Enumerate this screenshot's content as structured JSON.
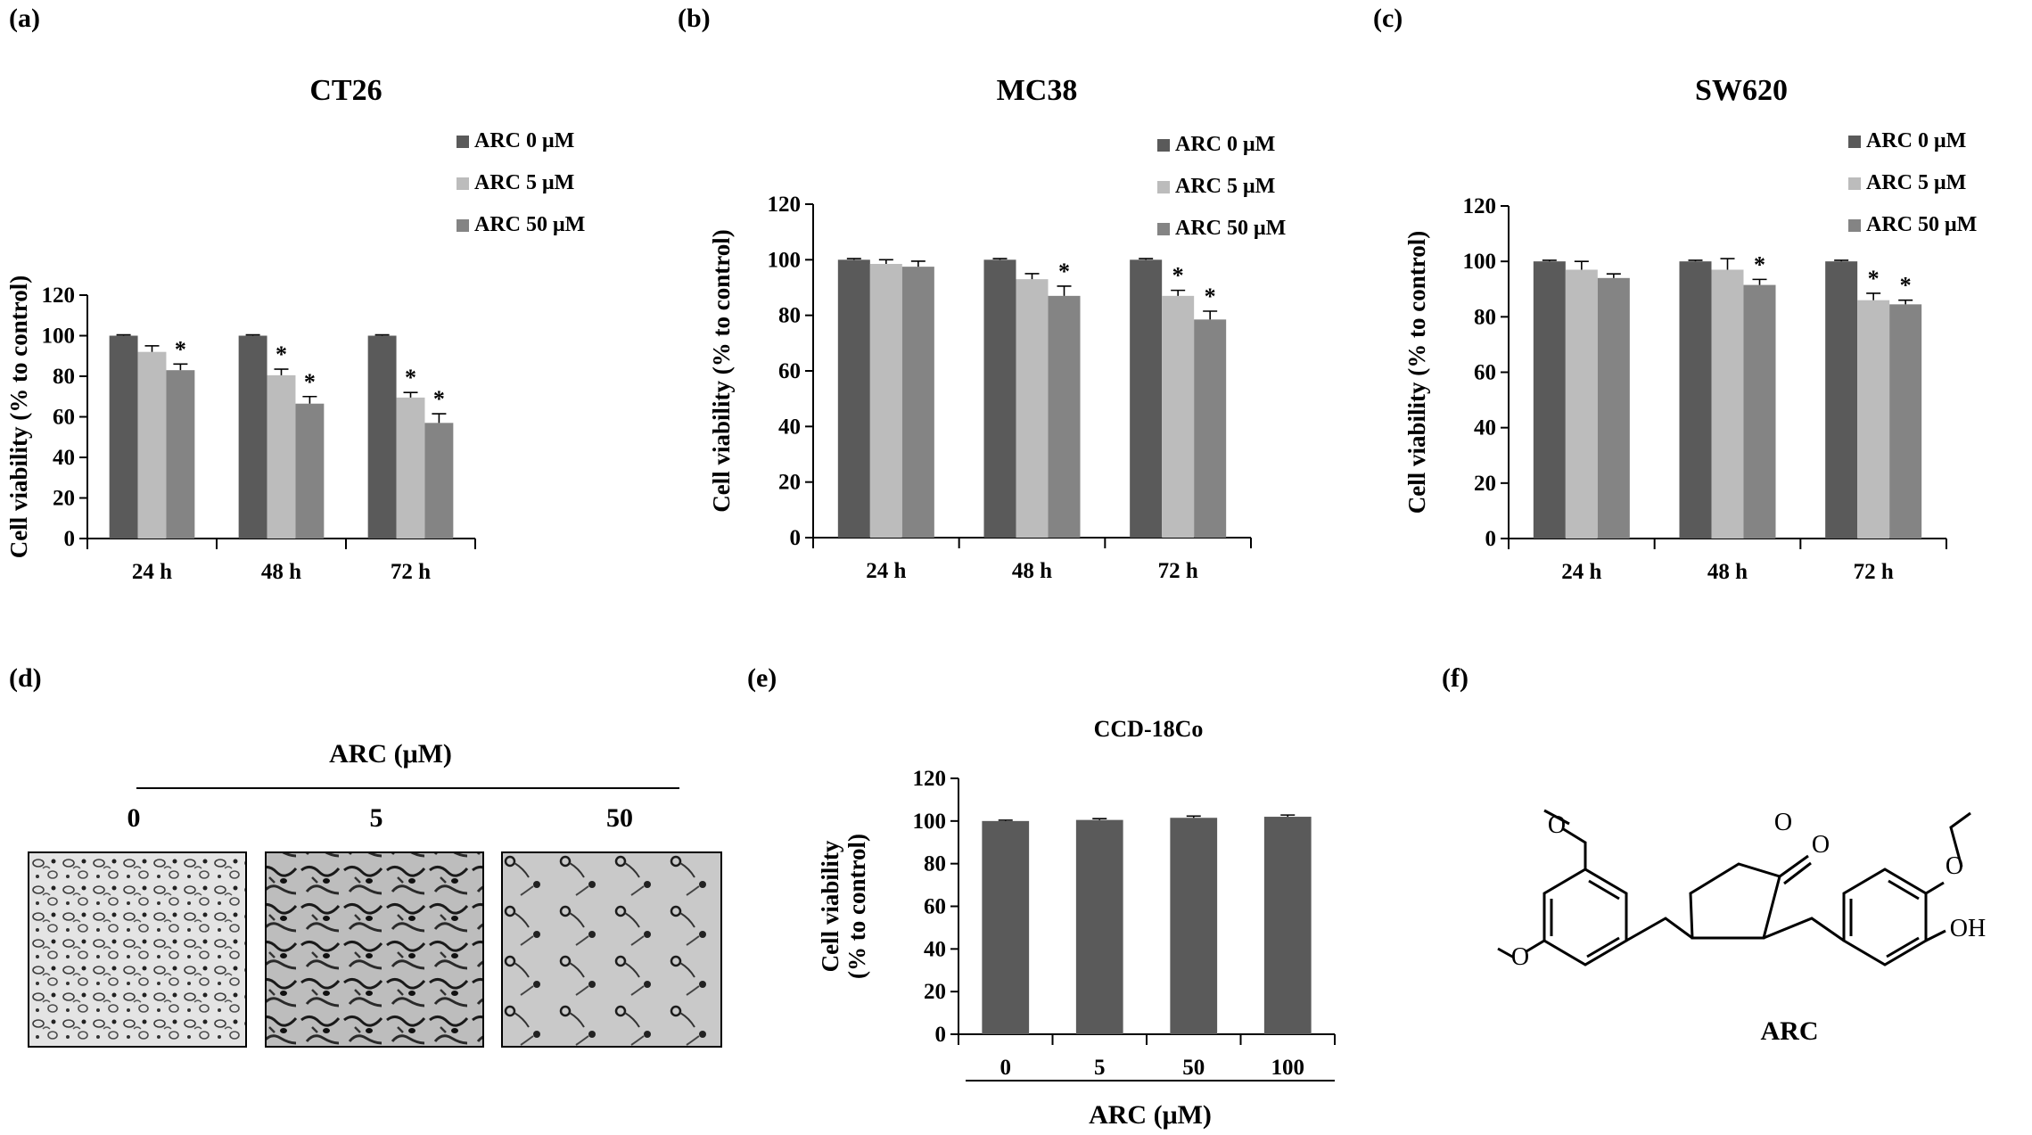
{
  "panel_labels": [
    "(a)",
    "(b)",
    "(c)",
    "(d)",
    "(e)",
    "(f)"
  ],
  "colors": {
    "ARC 0 μM": "#5a5a5a",
    "ARC 5 μM": "#bcbcbc",
    "ARC 50 μM": "#848484",
    "axis": "#000000"
  },
  "chart_data": [
    {
      "id": "a",
      "type": "bar",
      "title": "CT26",
      "ylabel": "Cell viability  (% to control)",
      "xlabel": "",
      "ylim": [
        0,
        120
      ],
      "yticks": [
        0,
        20,
        40,
        60,
        80,
        100,
        120
      ],
      "categories": [
        "24 h",
        "48 h",
        "72 h"
      ],
      "legend": "top-right",
      "series": [
        {
          "name": "ARC 0 μM",
          "values": [
            100,
            100,
            100
          ],
          "errors": [
            0.4,
            0.4,
            0.4
          ],
          "sig": [
            "",
            "",
            ""
          ]
        },
        {
          "name": "ARC 5 μM",
          "values": [
            92,
            80.5,
            69.5
          ],
          "errors": [
            3,
            3,
            2.5
          ],
          "sig": [
            "",
            "*",
            "*"
          ]
        },
        {
          "name": "ARC 50 μM",
          "values": [
            83,
            66.5,
            57
          ],
          "errors": [
            3,
            3.5,
            4.5
          ],
          "sig": [
            "*",
            "*",
            "*"
          ]
        }
      ]
    },
    {
      "id": "b",
      "type": "bar",
      "title": "MC38",
      "ylabel": "Cell viability  (% to control)",
      "xlabel": "",
      "ylim": [
        0,
        120
      ],
      "yticks": [
        0,
        20,
        40,
        60,
        80,
        100,
        120
      ],
      "categories": [
        "24 h",
        "48 h",
        "72 h"
      ],
      "legend": "top-right",
      "series": [
        {
          "name": "ARC 0 μM",
          "values": [
            100,
            100,
            100
          ],
          "errors": [
            0.4,
            0.4,
            0.4
          ],
          "sig": [
            "",
            "",
            ""
          ]
        },
        {
          "name": "ARC 5 μM",
          "values": [
            98.5,
            93,
            87
          ],
          "errors": [
            1.5,
            2,
            2
          ],
          "sig": [
            "",
            "",
            "*"
          ]
        },
        {
          "name": "ARC 50 μM",
          "values": [
            97.5,
            87,
            78.5
          ],
          "errors": [
            2,
            3.5,
            3
          ],
          "sig": [
            "",
            "*",
            "*"
          ]
        }
      ]
    },
    {
      "id": "c",
      "type": "bar",
      "title": "SW620",
      "ylabel": "Cell viability  (% to control)",
      "xlabel": "",
      "ylim": [
        0,
        120
      ],
      "yticks": [
        0,
        20,
        40,
        60,
        80,
        100,
        120
      ],
      "categories": [
        "24 h",
        "48 h",
        "72 h"
      ],
      "legend": "top-right",
      "series": [
        {
          "name": "ARC 0 μM",
          "values": [
            100,
            100,
            100
          ],
          "errors": [
            0.4,
            0.4,
            0.4
          ],
          "sig": [
            "",
            "",
            ""
          ]
        },
        {
          "name": "ARC 5 μM",
          "values": [
            97,
            97,
            86
          ],
          "errors": [
            3,
            4,
            2.5
          ],
          "sig": [
            "",
            "",
            "*"
          ]
        },
        {
          "name": "ARC 50 μM",
          "values": [
            94,
            91.5,
            84.5
          ],
          "errors": [
            1.5,
            2,
            1.5
          ],
          "sig": [
            "",
            "*",
            "*"
          ]
        }
      ]
    },
    {
      "id": "e",
      "type": "bar",
      "title": "CCD-18Co",
      "ylabel": "Cell viability (% to control)",
      "xlabel": "ARC  (μM)",
      "ylim": [
        0,
        120
      ],
      "yticks": [
        0,
        20,
        40,
        60,
        80,
        100,
        120
      ],
      "categories": [
        "0",
        "5",
        "50",
        "100"
      ],
      "series": [
        {
          "name": "ARC",
          "values": [
            100,
            100.5,
            101.5,
            102
          ],
          "errors": [
            0.4,
            0.6,
            0.8,
            0.8
          ],
          "sig": [
            "",
            "",
            "",
            ""
          ]
        }
      ]
    }
  ],
  "panel_d": {
    "title": "ARC (μM)",
    "doses": [
      "0",
      "5",
      "50"
    ]
  },
  "panel_f": {
    "compound_label": "ARC",
    "atom_labels": [
      "O",
      "O",
      "O",
      "O",
      "O",
      "OH"
    ]
  }
}
